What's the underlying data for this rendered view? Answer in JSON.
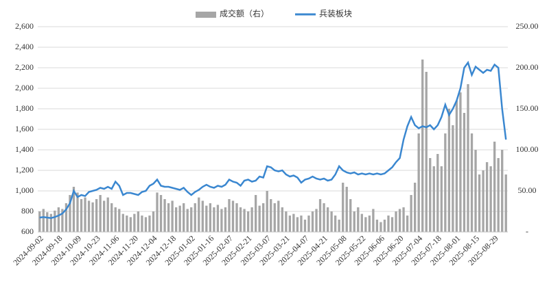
{
  "chart_data": {
    "type": "bar-line",
    "categories": [
      "2024-09-02",
      null,
      null,
      null,
      null,
      "2024-09-18",
      null,
      null,
      null,
      null,
      "2024-10-09",
      null,
      null,
      null,
      null,
      "2024-10-23",
      null,
      null,
      null,
      null,
      "2024-11-06",
      null,
      null,
      null,
      null,
      "2024-11-20",
      null,
      null,
      null,
      null,
      "2024-12-04",
      null,
      null,
      null,
      null,
      "2024-12-18",
      null,
      null,
      null,
      null,
      "2025-01-02",
      null,
      null,
      null,
      null,
      "2025-01-16",
      null,
      null,
      null,
      null,
      "2025-02-07",
      null,
      null,
      null,
      null,
      "2025-02-21",
      null,
      null,
      null,
      null,
      "2025-03-07",
      null,
      null,
      null,
      null,
      "2025-03-21",
      null,
      null,
      null,
      null,
      "2025-04-07",
      null,
      null,
      null,
      null,
      "2025-04-21",
      null,
      null,
      null,
      null,
      "2025-05-08",
      null,
      null,
      null,
      null,
      "2025-05-22",
      null,
      null,
      null,
      null,
      "2025-06-06",
      null,
      null,
      null,
      null,
      "2025-06-20",
      null,
      null,
      null,
      null,
      "2025-07-04",
      null,
      null,
      null,
      null,
      "2025-07-18",
      null,
      null,
      null,
      null,
      "2025-08-01",
      null,
      null,
      null,
      null,
      "2025-08-15",
      null,
      null,
      null,
      null,
      "2025-08-29",
      null,
      null,
      null
    ],
    "series": [
      {
        "name": "成交额（右）",
        "color": "#a6a6a6",
        "axis": "y2",
        "kind": "bar",
        "values": [
          25,
          28,
          24,
          22,
          26,
          30,
          28,
          35,
          45,
          55,
          48,
          40,
          42,
          38,
          36,
          40,
          45,
          38,
          42,
          35,
          30,
          28,
          22,
          20,
          18,
          22,
          25,
          20,
          18,
          20,
          25,
          48,
          45,
          40,
          35,
          38,
          30,
          32,
          35,
          28,
          30,
          35,
          42,
          38,
          32,
          35,
          30,
          33,
          28,
          30,
          40,
          38,
          35,
          30,
          28,
          25,
          30,
          45,
          32,
          35,
          50,
          40,
          35,
          38,
          30,
          25,
          20,
          22,
          18,
          20,
          15,
          20,
          25,
          28,
          40,
          35,
          30,
          25,
          20,
          15,
          60,
          55,
          40,
          25,
          30,
          22,
          18,
          20,
          28,
          15,
          12,
          15,
          20,
          18,
          25,
          28,
          30,
          20,
          45,
          60,
          120,
          210,
          195,
          90,
          80,
          95,
          80,
          120,
          150,
          130,
          160,
          170,
          145,
          180,
          120,
          100,
          70,
          75,
          85,
          80,
          110,
          90,
          100,
          70
        ]
      },
      {
        "name": "兵装板块",
        "color": "#3a87d0",
        "kind": "line",
        "values": [
          740,
          745,
          740,
          735,
          745,
          760,
          780,
          820,
          880,
          1000,
          940,
          960,
          950,
          990,
          1000,
          1010,
          1030,
          1020,
          1040,
          1020,
          1090,
          1050,
          960,
          980,
          980,
          970,
          960,
          990,
          1000,
          1050,
          1070,
          1110,
          1050,
          1040,
          1040,
          1030,
          1020,
          1010,
          1030,
          990,
          960,
          990,
          1010,
          1040,
          1060,
          1040,
          1030,
          1050,
          1040,
          1060,
          1110,
          1090,
          1080,
          1050,
          1100,
          1110,
          1090,
          1100,
          1140,
          1130,
          1240,
          1230,
          1200,
          1190,
          1200,
          1160,
          1140,
          1150,
          1130,
          1080,
          1110,
          1120,
          1140,
          1120,
          1110,
          1120,
          1100,
          1110,
          1160,
          1240,
          1200,
          1180,
          1170,
          1180,
          1160,
          1170,
          1160,
          1170,
          1160,
          1170,
          1160,
          1170,
          1200,
          1230,
          1280,
          1320,
          1500,
          1630,
          1720,
          1640,
          1610,
          1630,
          1620,
          1640,
          1600,
          1640,
          1720,
          1840,
          1740,
          1800,
          1880,
          2000,
          2200,
          2250,
          2130,
          2210,
          2180,
          2150,
          2180,
          2170,
          2230,
          2200,
          1800,
          1500
        ]
      }
    ],
    "ylim": [
      600,
      2600
    ],
    "yticks": [
      {
        "value": 600,
        "label": "600"
      },
      {
        "value": 800,
        "label": "800"
      },
      {
        "value": 1000,
        "label": "1,000"
      },
      {
        "value": 1200,
        "label": "1,200"
      },
      {
        "value": 1400,
        "label": "1,400"
      },
      {
        "value": 1600,
        "label": "1,600"
      },
      {
        "value": 1800,
        "label": "1,800"
      },
      {
        "value": 2000,
        "label": "2,000"
      },
      {
        "value": 2200,
        "label": "2,200"
      },
      {
        "value": 2400,
        "label": "2,400"
      },
      {
        "value": 2600,
        "label": "2,600"
      }
    ],
    "y2lim": [
      0,
      250
    ],
    "y2ticks": [
      {
        "value": 0,
        "label": "-"
      },
      {
        "value": 50,
        "label": "50.00"
      },
      {
        "value": 100,
        "label": "100.00"
      },
      {
        "value": 150,
        "label": "150.00"
      },
      {
        "value": 200,
        "label": "200.00"
      },
      {
        "value": 250,
        "label": "250.00"
      }
    ],
    "grid": true,
    "legend": "top"
  }
}
